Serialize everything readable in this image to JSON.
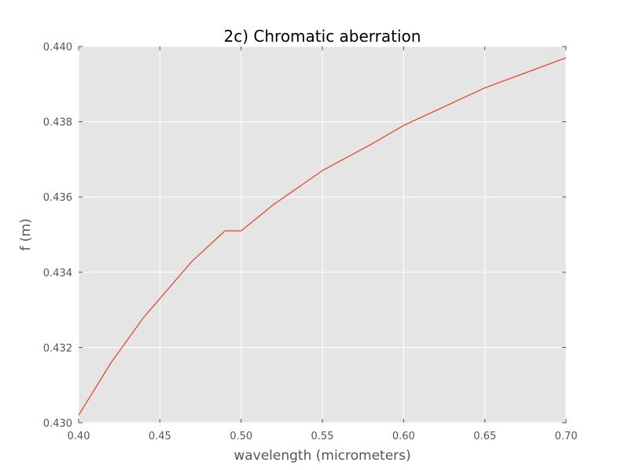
{
  "chart_data": {
    "type": "line",
    "title": "2c) Chromatic aberration",
    "xlabel": "wavelength (micrometers)",
    "ylabel": "f (m)",
    "xlim": [
      0.4,
      0.7
    ],
    "ylim": [
      0.43,
      0.44
    ],
    "xticks": [
      "0.40",
      "0.45",
      "0.50",
      "0.55",
      "0.60",
      "0.65",
      "0.70"
    ],
    "yticks": [
      "0.430",
      "0.432",
      "0.434",
      "0.436",
      "0.438",
      "0.440"
    ],
    "grid": true,
    "series": [
      {
        "color": "#e24a33",
        "x": [
          0.4,
          0.41,
          0.42,
          0.43,
          0.44,
          0.45,
          0.46,
          0.47,
          0.48,
          0.49,
          0.5,
          0.52,
          0.55,
          0.58,
          0.6,
          0.625,
          0.65,
          0.675,
          0.7
        ],
        "y": [
          0.4302,
          0.4309,
          0.4316,
          0.4322,
          0.4328,
          0.4333,
          0.4338,
          0.4343,
          0.4347,
          0.4351,
          0.4351,
          0.4358,
          0.4367,
          0.4374,
          0.4379,
          0.4384,
          0.4389,
          0.4393,
          0.4397
        ]
      }
    ],
    "colors": {
      "plot_background": "#e5e5e5",
      "grid": "#ffffff",
      "tick": "#555555",
      "line": "#e24a33"
    }
  }
}
